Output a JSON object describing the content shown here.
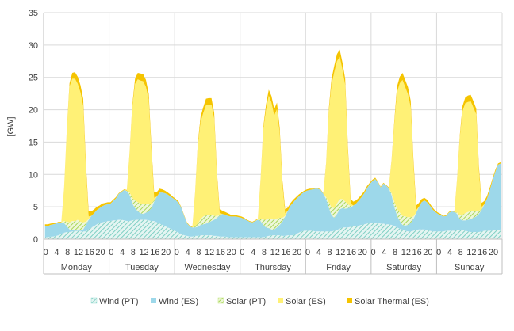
{
  "chart_data": {
    "type": "area",
    "stacked": true,
    "ylabel": "[GW]",
    "ylim": [
      0,
      35
    ],
    "yticks": [
      0,
      5,
      10,
      15,
      20,
      25,
      30,
      35
    ],
    "grid": "horizontal",
    "legend_position": "bottom",
    "days": [
      "Monday",
      "Tuesday",
      "Wednesday",
      "Thursday",
      "Friday",
      "Saturday",
      "Sunday"
    ],
    "hour_tick_labels": [
      "0",
      "4",
      "8",
      "12",
      "16",
      "20"
    ],
    "hours_per_day": 24,
    "series": [
      {
        "name": "Wind (PT)",
        "color": "#9BDCD2",
        "pattern": "diagonal-hatch",
        "values": [
          0.3,
          0.3,
          0.4,
          0.4,
          0.5,
          0.6,
          0.8,
          1.0,
          1.1,
          1.1,
          1.2,
          1.2,
          1.3,
          1.2,
          1.2,
          1.2,
          1.5,
          1.8,
          2.0,
          2.3,
          2.5,
          2.6,
          2.7,
          2.8,
          2.8,
          2.9,
          2.9,
          3.0,
          3.0,
          2.9,
          2.8,
          2.8,
          2.9,
          3.0,
          3.0,
          3.0,
          3.0,
          3.0,
          2.9,
          2.8,
          2.8,
          2.6,
          2.4,
          2.2,
          2.0,
          1.8,
          1.6,
          1.4,
          1.2,
          1.0,
          0.8,
          0.6,
          0.5,
          0.4,
          0.4,
          0.5,
          0.5,
          0.6,
          0.6,
          0.6,
          0.6,
          0.6,
          0.5,
          0.5,
          0.4,
          0.4,
          0.4,
          0.3,
          0.3,
          0.3,
          0.3,
          0.3,
          0.3,
          0.3,
          0.3,
          0.3,
          0.3,
          0.3,
          0.3,
          0.3,
          0.3,
          0.4,
          0.5,
          0.6,
          0.6,
          0.6,
          0.6,
          0.5,
          0.5,
          0.6,
          0.6,
          0.6,
          0.8,
          1.0,
          1.2,
          1.3,
          1.3,
          1.3,
          1.3,
          1.2,
          1.2,
          1.2,
          1.2,
          1.2,
          1.2,
          1.2,
          1.3,
          1.4,
          1.6,
          1.8,
          1.8,
          1.8,
          1.9,
          2.0,
          2.0,
          2.1,
          2.2,
          2.3,
          2.4,
          2.5,
          2.5,
          2.5,
          2.5,
          2.4,
          2.4,
          2.3,
          2.3,
          2.2,
          2.0,
          1.8,
          1.6,
          1.4,
          1.3,
          1.2,
          1.2,
          1.3,
          1.4,
          1.5,
          1.5,
          1.5,
          1.4,
          1.3,
          1.2,
          1.2,
          1.2,
          1.2,
          1.2,
          1.3,
          1.3,
          1.3,
          1.3,
          1.4,
          1.4,
          1.4,
          1.3,
          1.2,
          1.1,
          1.1,
          1.1,
          1.1,
          1.2,
          1.3,
          1.3,
          1.3,
          1.3,
          1.4,
          1.4,
          1.5
        ]
      },
      {
        "name": "Wind (ES)",
        "color": "#9DD8EA",
        "pattern": "solid",
        "values": [
          1.7,
          1.7,
          1.8,
          1.9,
          1.9,
          2.0,
          1.8,
          1.5,
          0.9,
          0.4,
          0.2,
          0.1,
          0.1,
          0.1,
          0.3,
          1.0,
          1.5,
          1.8,
          2.0,
          2.2,
          2.3,
          2.5,
          2.6,
          2.6,
          2.7,
          3.0,
          3.4,
          4.0,
          4.3,
          4.7,
          4.6,
          4.0,
          2.6,
          1.8,
          1.3,
          1.0,
          0.9,
          1.1,
          1.4,
          2.0,
          3.0,
          4.0,
          4.8,
          5.0,
          5.1,
          5.1,
          5.0,
          4.9,
          4.8,
          4.6,
          4.0,
          3.0,
          2.0,
          1.6,
          1.4,
          1.3,
          1.4,
          1.6,
          1.7,
          1.8,
          2.0,
          2.2,
          2.5,
          2.8,
          3.2,
          3.5,
          3.4,
          3.3,
          3.2,
          3.2,
          3.2,
          3.1,
          3.0,
          2.8,
          2.6,
          2.4,
          2.3,
          2.5,
          2.7,
          2.5,
          1.9,
          1.4,
          1.2,
          0.9,
          0.9,
          1.2,
          1.6,
          2.2,
          3.0,
          3.8,
          4.6,
          5.1,
          5.4,
          5.6,
          5.8,
          6.0,
          6.2,
          6.3,
          6.4,
          6.6,
          6.6,
          6.4,
          5.8,
          5.0,
          3.7,
          2.5,
          2.0,
          2.5,
          3.0,
          3.0,
          2.9,
          3.0,
          3.0,
          3.2,
          3.5,
          3.9,
          4.3,
          4.8,
          5.5,
          6.0,
          6.5,
          6.8,
          6.3,
          5.6,
          6.2,
          6.0,
          5.6,
          4.6,
          3.0,
          1.8,
          1.2,
          0.8,
          0.8,
          1.0,
          1.3,
          1.8,
          2.6,
          3.5,
          4.2,
          4.5,
          4.3,
          3.9,
          3.4,
          3.0,
          2.7,
          2.5,
          2.3,
          2.3,
          2.8,
          3.0,
          2.9,
          2.5,
          1.7,
          1.5,
          1.6,
          1.8,
          2.0,
          2.2,
          2.4,
          2.8,
          3.3,
          4.1,
          5.0,
          6.3,
          7.8,
          9.0,
          10.1,
          10.2
        ]
      },
      {
        "name": "Solar (PT)",
        "color": "#BFE57A",
        "pattern": "diagonal-hatch",
        "values": [
          0,
          0,
          0,
          0,
          0,
          0,
          0,
          0.3,
          0.7,
          1.1,
          1.4,
          1.5,
          1.6,
          1.4,
          1.1,
          0.5,
          0.1,
          0,
          0,
          0,
          0,
          0,
          0,
          0,
          0,
          0,
          0,
          0,
          0,
          0,
          0.1,
          0.4,
          0.9,
          1.2,
          1.4,
          1.5,
          1.5,
          1.4,
          1.2,
          0.7,
          0.2,
          0,
          0,
          0,
          0,
          0,
          0,
          0,
          0,
          0,
          0,
          0,
          0,
          0,
          0,
          0.2,
          0.5,
          0.9,
          1.2,
          1.3,
          1.2,
          1.0,
          0.6,
          0.3,
          0.1,
          0,
          0,
          0,
          0,
          0,
          0,
          0,
          0,
          0,
          0,
          0,
          0,
          0,
          0,
          0.3,
          0.8,
          1.2,
          1.5,
          1.6,
          1.6,
          1.3,
          1.1,
          0.6,
          0.1,
          0,
          0,
          0,
          0,
          0,
          0,
          0,
          0,
          0,
          0,
          0,
          0,
          0,
          0,
          0.3,
          0.8,
          1.2,
          1.5,
          1.6,
          1.6,
          1.4,
          1.1,
          0.6,
          0.2,
          0,
          0,
          0,
          0,
          0,
          0,
          0,
          0,
          0,
          0,
          0,
          0,
          0,
          0,
          0.3,
          0.8,
          1.1,
          1.3,
          1.4,
          1.4,
          1.2,
          0.9,
          0.4,
          0.1,
          0,
          0,
          0,
          0,
          0,
          0,
          0,
          0,
          0,
          0,
          0,
          0,
          0,
          0,
          0.2,
          0.6,
          0.9,
          1.1,
          1.2,
          1.2,
          1.0,
          0.8,
          0.5,
          0.1,
          0,
          0,
          0,
          0,
          0,
          0,
          0
        ]
      },
      {
        "name": "Solar (ES)",
        "color": "#FFF176",
        "pattern": "solid",
        "values": [
          0,
          0,
          0,
          0,
          0,
          0,
          0,
          5,
          14,
          21,
          22,
          22,
          21,
          20,
          18,
          8,
          0.4,
          0,
          0,
          0,
          0,
          0,
          0,
          0,
          0,
          0,
          0,
          0,
          0,
          0,
          0,
          6,
          14,
          18,
          19,
          19,
          19,
          18,
          16,
          8,
          0.4,
          0,
          0,
          0,
          0,
          0,
          0,
          0,
          0,
          0,
          0,
          0,
          0,
          0,
          0,
          5,
          12,
          15,
          16,
          17,
          17,
          17,
          15,
          6,
          0.3,
          0,
          0,
          0,
          0,
          0,
          0,
          0,
          0,
          0,
          0,
          0,
          0,
          0,
          0.1,
          6,
          14,
          17,
          19,
          18,
          16,
          17,
          13,
          5,
          0.4,
          0,
          0,
          0,
          0,
          0,
          0,
          0,
          0,
          0,
          0,
          0,
          0,
          0,
          0,
          5,
          14,
          19,
          21,
          22,
          22,
          20,
          18,
          8,
          0.4,
          0,
          0,
          0,
          0,
          0,
          0,
          0,
          0,
          0,
          0,
          0,
          0,
          0,
          0,
          5,
          12,
          18,
          20,
          21,
          20,
          19,
          17,
          8,
          0.4,
          0,
          0,
          0,
          0,
          0,
          0,
          0,
          0,
          0,
          0,
          0,
          0,
          0,
          0,
          5,
          12,
          16,
          17,
          17,
          17,
          16,
          15,
          6,
          0.4,
          0,
          0,
          0,
          0,
          0,
          0,
          0
        ]
      },
      {
        "name": "Solar Thermal (ES)",
        "color": "#F5C400",
        "pattern": "solid",
        "values": [
          0.3,
          0.3,
          0.2,
          0.2,
          0.1,
          0.1,
          0.1,
          0.1,
          0.2,
          0.5,
          0.9,
          1.0,
          1.1,
          1.1,
          1.1,
          1.0,
          0.8,
          0.7,
          0.6,
          0.5,
          0.4,
          0.4,
          0.3,
          0.3,
          0.2,
          0.2,
          0.2,
          0.1,
          0.1,
          0.1,
          0.1,
          0.2,
          0.4,
          0.8,
          1.0,
          1.1,
          1.1,
          1.1,
          1.0,
          0.9,
          0.8,
          0.7,
          0.6,
          0.5,
          0.4,
          0.3,
          0.3,
          0.2,
          0.2,
          0.2,
          0.1,
          0.1,
          0.1,
          0.1,
          0.1,
          0.2,
          0.4,
          0.8,
          0.9,
          1.0,
          1.0,
          1.0,
          0.9,
          0.8,
          0.6,
          0.5,
          0.4,
          0.4,
          0.3,
          0.3,
          0.2,
          0.2,
          0.2,
          0.2,
          0.1,
          0.1,
          0.1,
          0.1,
          0.1,
          0.2,
          0.4,
          0.8,
          0.9,
          1.0,
          1.0,
          1.0,
          0.9,
          0.8,
          0.6,
          0.5,
          0.4,
          0.4,
          0.3,
          0.3,
          0.2,
          0.2,
          0.2,
          0.2,
          0.1,
          0.1,
          0.1,
          0.1,
          0.1,
          0.2,
          0.5,
          0.9,
          1.0,
          1.1,
          1.1,
          1.1,
          1.0,
          0.9,
          0.7,
          0.6,
          0.5,
          0.4,
          0.4,
          0.3,
          0.3,
          0.2,
          0.2,
          0.2,
          0.1,
          0.1,
          0.1,
          0.1,
          0.1,
          0.2,
          0.5,
          0.9,
          1.0,
          1.1,
          1.1,
          1.1,
          1.0,
          0.9,
          0.7,
          0.6,
          0.5,
          0.4,
          0.4,
          0.3,
          0.3,
          0.2,
          0.2,
          0.2,
          0.1,
          0.1,
          0.1,
          0.1,
          0.1,
          0.2,
          0.4,
          0.8,
          0.9,
          1.0,
          1.0,
          1.0,
          0.9,
          0.8,
          0.6,
          0.5,
          0.4,
          0.4,
          0.3,
          0.3,
          0.2,
          0.2
        ]
      }
    ]
  }
}
